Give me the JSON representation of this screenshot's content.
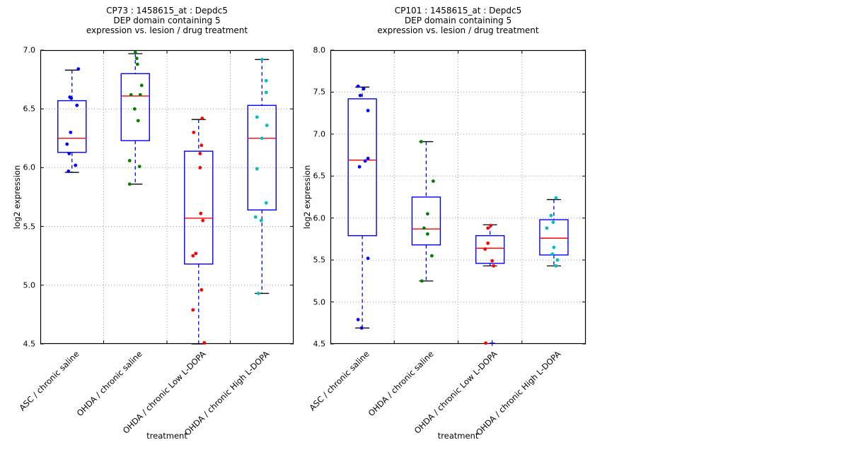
{
  "style": {
    "background": "#ffffff",
    "text_color": "#000000",
    "axis_color": "#000000",
    "grid_color": "#9c9c9c",
    "box_color": "#0000ff",
    "median_color": "#ff0000",
    "whisker_color": "#0000ff",
    "cap_color": "#000000",
    "flier_color": "#0000ff"
  },
  "chart_data": [
    {
      "type": "boxplot-scatter",
      "title_lines": [
        "CP73 : 1458615_at : Depdc5",
        "DEP domain containing 5",
        "expression vs. lesion / drug treatment"
      ],
      "xlabel": "treatment",
      "ylabel": "log2 expression",
      "ylim": [
        4.5,
        7.0
      ],
      "yticks": [
        4.5,
        5.0,
        5.5,
        6.0,
        6.5,
        7.0
      ],
      "grid": "dotted",
      "categories": [
        "ASC / chronic saline",
        "OHDA / chronic saline",
        "OHDA / chronic Low L-DOPA",
        "OHDA / chronic High L-DOPA"
      ],
      "groups": [
        {
          "label": "ASC / chronic saline",
          "point_color": "#0000ff",
          "box": {
            "q1": 6.13,
            "median": 6.25,
            "q3": 6.57,
            "whisker_low": 5.96,
            "whisker_high": 6.83
          },
          "points": [
            [
              9,
              6.84
            ],
            [
              -3,
              6.6
            ],
            [
              -1,
              6.59
            ],
            [
              7,
              6.53
            ],
            [
              -2,
              6.3
            ],
            [
              -7,
              6.2
            ],
            [
              -4,
              6.12
            ],
            [
              5,
              6.02
            ],
            [
              -5,
              5.97
            ]
          ]
        },
        {
          "label": "OHDA / chronic saline",
          "point_color": "#008000",
          "box": {
            "q1": 6.23,
            "median": 6.61,
            "q3": 6.8,
            "whisker_low": 5.86,
            "whisker_high": 6.97
          },
          "points": [
            [
              0,
              6.98
            ],
            [
              2,
              6.93
            ],
            [
              3,
              6.88
            ],
            [
              9,
              6.7
            ],
            [
              -6,
              6.62
            ],
            [
              7,
              6.62
            ],
            [
              -1,
              6.5
            ],
            [
              4,
              6.4
            ],
            [
              -8,
              6.06
            ],
            [
              6,
              6.01
            ],
            [
              -8,
              5.86
            ]
          ]
        },
        {
          "label": "OHDA / chronic Low L-DOPA",
          "point_color": "#ff0000",
          "box": {
            "q1": 5.18,
            "median": 5.57,
            "q3": 6.14,
            "whisker_low": 4.5,
            "whisker_high": 6.41
          },
          "points": [
            [
              5,
              6.42
            ],
            [
              -7,
              6.3
            ],
            [
              4,
              6.19
            ],
            [
              2,
              6.12
            ],
            [
              2,
              6.0
            ],
            [
              3,
              5.61
            ],
            [
              6,
              5.55
            ],
            [
              -4,
              5.27
            ],
            [
              -8,
              5.25
            ],
            [
              4,
              4.96
            ],
            [
              -8,
              4.79
            ],
            [
              8,
              4.51
            ]
          ]
        },
        {
          "label": "OHDA / chronic High L-DOPA",
          "point_color": "#00bfbf",
          "box": {
            "q1": 5.64,
            "median": 6.25,
            "q3": 6.53,
            "whisker_low": 4.93,
            "whisker_high": 6.92
          },
          "points": [
            [
              0,
              6.92
            ],
            [
              6,
              6.74
            ],
            [
              6,
              6.64
            ],
            [
              -7,
              6.43
            ],
            [
              7,
              6.36
            ],
            [
              0,
              6.25
            ],
            [
              -7,
              5.99
            ],
            [
              6,
              5.7
            ],
            [
              -9,
              5.58
            ],
            [
              -1,
              5.55
            ],
            [
              -5,
              4.93
            ]
          ]
        }
      ]
    },
    {
      "type": "boxplot-scatter",
      "title_lines": [
        "CP101 : 1458615_at : Depdc5",
        "DEP domain containing 5",
        "expression vs. lesion / drug treatment"
      ],
      "xlabel": "treatment",
      "ylabel": "log2 expression",
      "ylim": [
        4.5,
        8.0
      ],
      "yticks": [
        4.5,
        5.0,
        5.5,
        6.0,
        6.5,
        7.0,
        7.5,
        8.0
      ],
      "grid": "dotted",
      "categories": [
        "ASC / chronic saline",
        "OHDA / chronic saline",
        "OHDA / chronic Low L-DOPA",
        "OHDA / chronic High L-DOPA"
      ],
      "groups": [
        {
          "label": "ASC / chronic saline",
          "point_color": "#0000ff",
          "box": {
            "q1": 5.79,
            "median": 6.69,
            "q3": 7.42,
            "whisker_low": 4.69,
            "whisker_high": 7.56
          },
          "points": [
            [
              -6,
              7.57
            ],
            [
              2,
              7.54
            ],
            [
              -3,
              7.46
            ],
            [
              8,
              7.28
            ],
            [
              8,
              6.71
            ],
            [
              4,
              6.68
            ],
            [
              -4,
              6.61
            ],
            [
              8,
              5.52
            ],
            [
              -6,
              4.79
            ],
            [
              -1,
              4.69
            ]
          ]
        },
        {
          "label": "OHDA / chronic saline",
          "point_color": "#008000",
          "box": {
            "q1": 5.68,
            "median": 5.87,
            "q3": 6.25,
            "whisker_low": 5.25,
            "whisker_high": 6.91
          },
          "points": [
            [
              -7,
              6.91
            ],
            [
              10,
              6.44
            ],
            [
              2,
              6.05
            ],
            [
              -3,
              5.88
            ],
            [
              2,
              5.81
            ],
            [
              8,
              5.55
            ],
            [
              -6,
              5.25
            ]
          ]
        },
        {
          "label": "OHDA / chronic Low L-DOPA",
          "point_color": "#ff0000",
          "box": {
            "q1": 5.46,
            "median": 5.64,
            "q3": 5.79,
            "whisker_low": 5.43,
            "whisker_high": 5.92
          },
          "points": [
            [
              1,
              5.91
            ],
            [
              -3,
              5.88
            ],
            [
              -3,
              5.7
            ],
            [
              -7,
              5.63
            ],
            [
              3,
              5.49
            ],
            [
              5,
              5.43
            ],
            [
              -6,
              4.51
            ]
          ],
          "fliers": [
            [
              3,
              4.51
            ]
          ]
        },
        {
          "label": "OHDA / chronic High L-DOPA",
          "point_color": "#00bfbf",
          "box": {
            "q1": 5.56,
            "median": 5.76,
            "q3": 5.98,
            "whisker_low": 5.43,
            "whisker_high": 6.22
          },
          "points": [
            [
              3,
              6.24
            ],
            [
              -4,
              6.03
            ],
            [
              -1,
              5.95
            ],
            [
              -10,
              5.88
            ],
            [
              0,
              5.65
            ],
            [
              -2,
              5.57
            ],
            [
              5,
              5.5
            ],
            [
              3,
              5.43
            ]
          ]
        }
      ]
    }
  ]
}
